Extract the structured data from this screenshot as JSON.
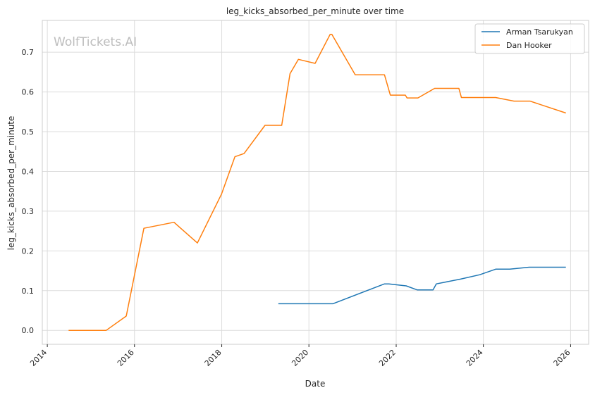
{
  "chart_data": {
    "type": "line",
    "title": "leg_kicks_absorbed_per_minute over time",
    "xlabel": "Date",
    "ylabel": "leg_kicks_absorbed_per_minute",
    "watermark": "WolfTickets.AI",
    "x_ticks": [
      "2014",
      "2016",
      "2018",
      "2020",
      "2022",
      "2024",
      "2026"
    ],
    "y_ticks": [
      "0.0",
      "0.1",
      "0.2",
      "0.3",
      "0.4",
      "0.5",
      "0.6",
      "0.7"
    ],
    "xlim": [
      "2013-11-20",
      "2026-06-01"
    ],
    "ylim": [
      -0.035,
      0.78
    ],
    "grid": true,
    "legend_position": "top-right",
    "colors": {
      "Arman Tsarukyan": "#1f77b4",
      "Dan Hooker": "#ff7f0e"
    },
    "series": [
      {
        "name": "Arman Tsarukyan",
        "points": [
          [
            "2019-04-20",
            0.067
          ],
          [
            "2020-07-19",
            0.067
          ],
          [
            "2021-09-25",
            0.117
          ],
          [
            "2021-11-01",
            0.117
          ],
          [
            "2022-02-26",
            0.113
          ],
          [
            "2022-03-26",
            0.112
          ],
          [
            "2022-06-25",
            0.102
          ],
          [
            "2022-11-05",
            0.102
          ],
          [
            "2022-12-03",
            0.117
          ],
          [
            "2023-06-24",
            0.129
          ],
          [
            "2023-12-02",
            0.14
          ],
          [
            "2024-04-13",
            0.154
          ],
          [
            "2024-08-10",
            0.154
          ],
          [
            "2025-01-18",
            0.159
          ],
          [
            "2025-11-22",
            0.159
          ]
        ]
      },
      {
        "name": "Dan Hooker",
        "points": [
          [
            "2014-06-28",
            0.0
          ],
          [
            "2015-05-09",
            0.0
          ],
          [
            "2015-10-24",
            0.036
          ],
          [
            "2016-03-20",
            0.257
          ],
          [
            "2016-11-27",
            0.272
          ],
          [
            "2017-06-11",
            0.22
          ],
          [
            "2017-12-30",
            0.343
          ],
          [
            "2018-04-21",
            0.437
          ],
          [
            "2018-07-07",
            0.445
          ],
          [
            "2018-12-29",
            0.516
          ],
          [
            "2019-05-18",
            0.516
          ],
          [
            "2019-07-27",
            0.646
          ],
          [
            "2019-10-05",
            0.682
          ],
          [
            "2020-02-22",
            0.672
          ],
          [
            "2020-06-27",
            0.745
          ],
          [
            "2020-07-11",
            0.745
          ],
          [
            "2021-01-23",
            0.643
          ],
          [
            "2021-09-25",
            0.643
          ],
          [
            "2021-11-13",
            0.592
          ],
          [
            "2022-03-19",
            0.592
          ],
          [
            "2022-04-02",
            0.585
          ],
          [
            "2022-07-02",
            0.585
          ],
          [
            "2022-11-19",
            0.609
          ],
          [
            "2023-06-10",
            0.609
          ],
          [
            "2023-07-01",
            0.586
          ],
          [
            "2024-04-13",
            0.586
          ],
          [
            "2024-09-14",
            0.577
          ],
          [
            "2025-01-25",
            0.577
          ],
          [
            "2025-11-22",
            0.547
          ]
        ]
      }
    ]
  }
}
